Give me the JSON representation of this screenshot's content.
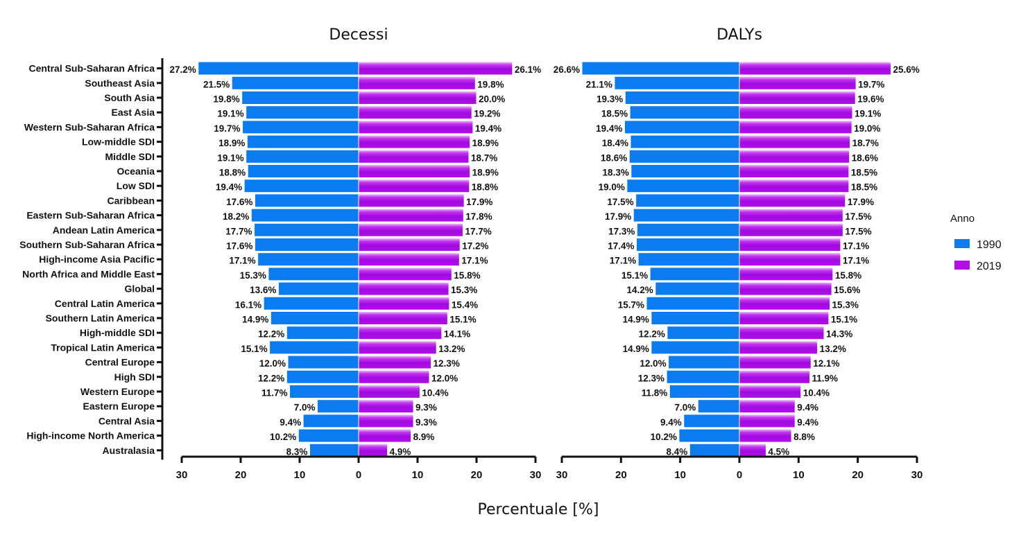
{
  "chart_data": {
    "type": "bar",
    "orientation": "horizontal-diverging",
    "xlabel": "Percentuale [%]",
    "legend": {
      "title": "Anno",
      "placement": "right",
      "entries": [
        {
          "name": "1990",
          "color": "#0a7cf0"
        },
        {
          "name": "2019",
          "color": "#b20ee8"
        }
      ]
    },
    "categories": [
      "Central Sub-Saharan Africa",
      "Southeast Asia",
      "South Asia",
      "East Asia",
      "Western Sub-Saharan Africa",
      "Low-middle SDI",
      "Middle SDI",
      "Oceania",
      "Low SDI",
      "Caribbean",
      "Eastern Sub-Saharan Africa",
      "Andean Latin America",
      "Southern Sub-Saharan Africa",
      "High-income Asia Pacific",
      "North Africa and Middle East",
      "Global",
      "Central Latin America",
      "Southern Latin America",
      "High-middle SDI",
      "Tropical Latin America",
      "Central Europe",
      "High SDI",
      "Western Europe",
      "Eastern Europe",
      "Central Asia",
      "High-income North America",
      "Australasia"
    ],
    "xticks": [
      "30",
      "20",
      "10",
      "0",
      "10",
      "20",
      "30"
    ],
    "xlim": [
      -30,
      30
    ],
    "panels": [
      {
        "title": "Decessi",
        "series": [
          {
            "name": "1990",
            "side": "left",
            "values": [
              27.2,
              21.5,
              19.8,
              19.1,
              19.7,
              18.9,
              19.1,
              18.8,
              19.4,
              17.6,
              18.2,
              17.7,
              17.6,
              17.1,
              15.3,
              13.6,
              16.1,
              14.9,
              12.2,
              15.1,
              12.0,
              12.2,
              11.7,
              7.0,
              9.4,
              10.2,
              8.3
            ]
          },
          {
            "name": "2019",
            "side": "right",
            "values": [
              26.1,
              19.8,
              20.0,
              19.2,
              19.4,
              18.9,
              18.7,
              18.9,
              18.8,
              17.9,
              17.8,
              17.7,
              17.2,
              17.1,
              15.8,
              15.3,
              15.4,
              15.1,
              14.1,
              13.2,
              12.3,
              12.0,
              10.4,
              9.3,
              9.3,
              8.9,
              4.9
            ]
          }
        ]
      },
      {
        "title": "DALYs",
        "series": [
          {
            "name": "1990",
            "side": "left",
            "values": [
              26.6,
              21.1,
              19.3,
              18.5,
              19.4,
              18.4,
              18.6,
              18.3,
              19.0,
              17.5,
              17.9,
              17.3,
              17.4,
              17.1,
              15.1,
              14.2,
              15.7,
              14.9,
              12.2,
              14.9,
              12.0,
              12.3,
              11.8,
              7.0,
              9.4,
              10.2,
              8.4
            ]
          },
          {
            "name": "2019",
            "side": "right",
            "values": [
              25.6,
              19.7,
              19.6,
              19.1,
              19.0,
              18.7,
              18.6,
              18.5,
              18.5,
              17.9,
              17.5,
              17.5,
              17.1,
              17.1,
              15.8,
              15.6,
              15.3,
              15.1,
              14.3,
              13.2,
              12.1,
              11.9,
              10.4,
              9.4,
              9.4,
              8.8,
              4.5
            ]
          }
        ]
      }
    ],
    "value_label_format": "{v}%"
  }
}
